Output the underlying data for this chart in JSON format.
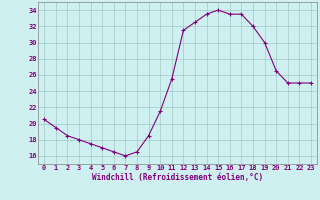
{
  "hours": [
    0,
    1,
    2,
    3,
    4,
    5,
    6,
    7,
    8,
    9,
    10,
    11,
    12,
    13,
    14,
    15,
    16,
    17,
    18,
    19,
    20,
    21,
    22,
    23
  ],
  "values": [
    20.5,
    19.5,
    18.5,
    18.0,
    17.5,
    17.0,
    16.5,
    16.0,
    16.5,
    18.5,
    21.5,
    25.5,
    31.5,
    32.5,
    33.5,
    34.0,
    33.5,
    33.5,
    32.0,
    30.0,
    26.5,
    25.0,
    25.0,
    25.0
  ],
  "line_color": "#800080",
  "marker": "+",
  "bg_color": "#cff0f0",
  "grid_color": "#a0c8c8",
  "tick_label_color": "#800080",
  "axis_label_color": "#800080",
  "xlabel_text": "Windchill (Refroidissement éolien,°C)",
  "ylim": [
    15,
    35
  ],
  "yticks": [
    16,
    18,
    20,
    22,
    24,
    26,
    28,
    30,
    32,
    34
  ],
  "xlabel_fontsize": 5.5,
  "tick_fontsize": 5.0,
  "linewidth": 0.8,
  "markersize": 3,
  "markeredgewidth": 0.8
}
